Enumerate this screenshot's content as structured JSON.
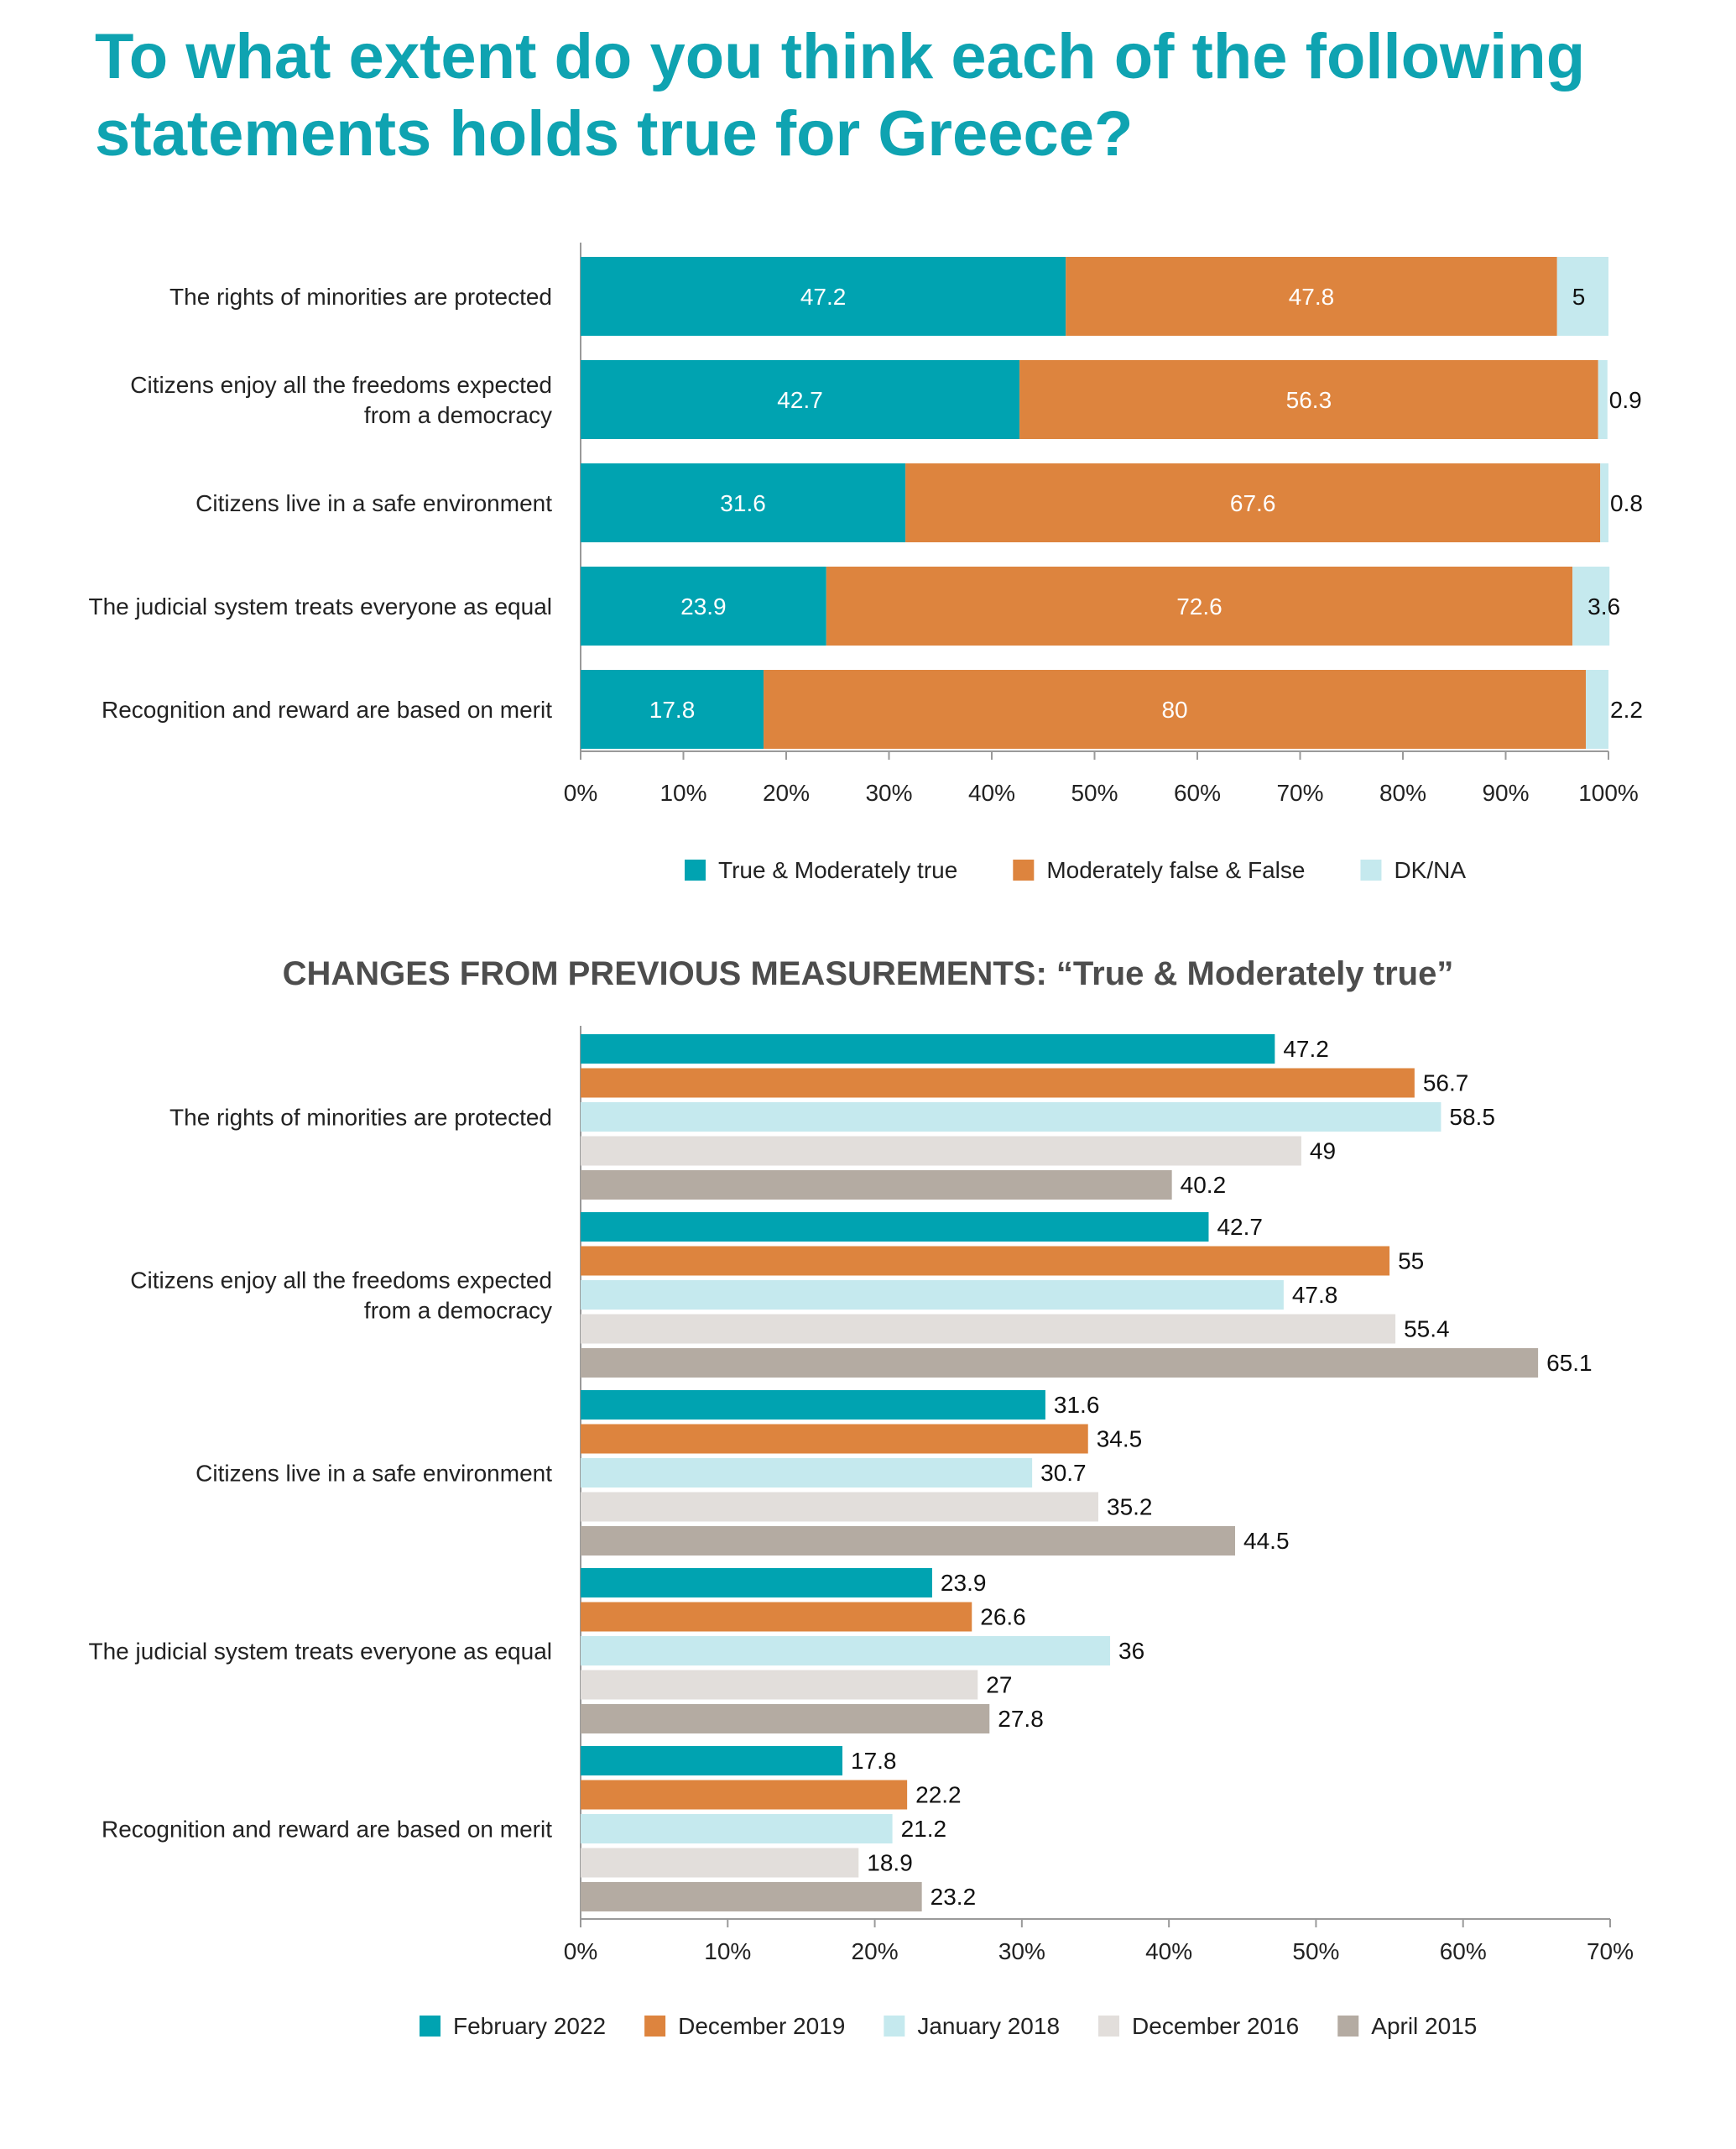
{
  "page_title": {
    "line1": "To what extent do you think each of the following",
    "line2": "statements holds true for Greece?"
  },
  "colors": {
    "teal": "#00a3b1",
    "orange": "#dd843e",
    "lightblue": "#c5e9ee",
    "lightgray": "#e2dedb",
    "gray": "#b4aba2",
    "axis": "#9a9a9a"
  },
  "chart_data": [
    {
      "type": "bar",
      "orientation": "horizontal",
      "stacked": true,
      "categories": [
        [
          "The rights of minorities are protected"
        ],
        [
          "Citizens enjoy all the freedoms expected",
          "from a democracy"
        ],
        [
          "Citizens live in a safe environment"
        ],
        [
          "The judicial system treats everyone as equal"
        ],
        [
          "Recognition and reward are based on merit"
        ]
      ],
      "series": [
        {
          "name": "True & Moderately true",
          "values": [
            47.2,
            42.7,
            31.6,
            23.9,
            17.8
          ]
        },
        {
          "name": "Moderately false & False",
          "values": [
            47.8,
            56.3,
            67.6,
            72.6,
            80
          ]
        },
        {
          "name": "DK/NA",
          "values": [
            5,
            0.9,
            0.8,
            3.6,
            2.2
          ]
        }
      ],
      "xlim": [
        0,
        100
      ],
      "xticks": [
        "0%",
        "10%",
        "20%",
        "30%",
        "40%",
        "50%",
        "60%",
        "70%",
        "80%",
        "90%",
        "100%"
      ],
      "legend": "bottom",
      "grid": false
    },
    {
      "type": "bar",
      "orientation": "horizontal",
      "stacked": false,
      "title": "CHANGES FROM PREVIOUS MEASUREMENTS: “True & Moderately true”",
      "categories": [
        [
          "The rights of minorities are protected"
        ],
        [
          "Citizens enjoy all the freedoms expected",
          "from a democracy"
        ],
        [
          "Citizens live in a safe environment"
        ],
        [
          "The judicial system treats everyone as equal"
        ],
        [
          "Recognition and reward are based on merit"
        ]
      ],
      "series": [
        {
          "name": "February 2022",
          "values": [
            47.2,
            42.7,
            31.6,
            23.9,
            17.8
          ]
        },
        {
          "name": "December 2019",
          "values": [
            56.7,
            55,
            34.5,
            26.6,
            22.2
          ]
        },
        {
          "name": "January 2018",
          "values": [
            58.5,
            47.8,
            30.7,
            36,
            21.2
          ]
        },
        {
          "name": "December 2016",
          "values": [
            49,
            55.4,
            35.2,
            27,
            18.9
          ]
        },
        {
          "name": "April 2015",
          "values": [
            40.2,
            65.1,
            44.5,
            27.8,
            23.2
          ]
        }
      ],
      "xlim": [
        0,
        70
      ],
      "xticks": [
        "0%",
        "10%",
        "20%",
        "30%",
        "40%",
        "50%",
        "60%",
        "70%"
      ],
      "legend": "bottom",
      "grid": false
    }
  ]
}
